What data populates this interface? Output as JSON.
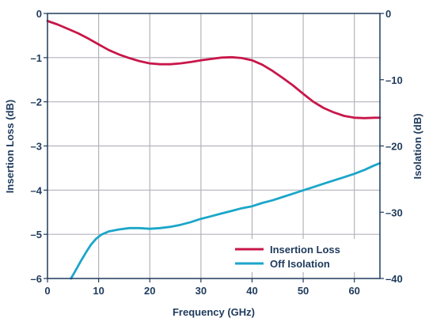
{
  "chart_data": {
    "type": "line",
    "xlabel": "Frequency (GHz)",
    "ylabel_left": "Insertion Loss (dB)",
    "ylabel_right": "Isolation (dB)",
    "xlim": [
      0,
      65
    ],
    "ylim_left": [
      -6,
      0
    ],
    "ylim_right": [
      -40,
      0
    ],
    "x_ticks": [
      0,
      10,
      20,
      30,
      40,
      50,
      60
    ],
    "y_ticks_left": [
      0,
      -1,
      -2,
      -3,
      -4,
      -5,
      -6
    ],
    "y_ticks_left_labels": [
      "0",
      "–1",
      "–2",
      "–3",
      "–4",
      "–5",
      "–6"
    ],
    "y_ticks_right": [
      0,
      -10,
      -20,
      -30,
      -40
    ],
    "y_ticks_right_labels": [
      "0",
      "–10",
      "–20",
      "–30",
      "–40"
    ],
    "grid": true,
    "legend_position": "bottom-right",
    "series": [
      {
        "name": "Insertion Loss",
        "axis": "left",
        "color": "#c8174a",
        "x": [
          0,
          2,
          4,
          6,
          8,
          10,
          12,
          14,
          16,
          18,
          20,
          22,
          24,
          26,
          28,
          30,
          32,
          34,
          36,
          38,
          40,
          42,
          44,
          46,
          48,
          50,
          52,
          54,
          56,
          58,
          60,
          62,
          64,
          65
        ],
        "y": [
          -0.17,
          -0.25,
          -0.35,
          -0.45,
          -0.57,
          -0.7,
          -0.83,
          -0.93,
          -1.01,
          -1.08,
          -1.13,
          -1.15,
          -1.15,
          -1.13,
          -1.1,
          -1.06,
          -1.03,
          -1.0,
          -0.99,
          -1.01,
          -1.06,
          -1.16,
          -1.3,
          -1.46,
          -1.63,
          -1.82,
          -2.0,
          -2.14,
          -2.24,
          -2.32,
          -2.36,
          -2.37,
          -2.36,
          -2.36
        ]
      },
      {
        "name": "Off Isolation",
        "axis": "right",
        "color": "#1ba6c9",
        "x": [
          4.6,
          5.5,
          6.5,
          7.5,
          8.5,
          9.5,
          10.5,
          12,
          14,
          16,
          18,
          20,
          22,
          24,
          26,
          28,
          30,
          32,
          34,
          36,
          38,
          40,
          42,
          44,
          46,
          48,
          50,
          52,
          54,
          56,
          58,
          60,
          62,
          64,
          65
        ],
        "y": [
          -40,
          -38.8,
          -37.4,
          -36.1,
          -34.9,
          -34.0,
          -33.4,
          -32.9,
          -32.6,
          -32.4,
          -32.4,
          -32.5,
          -32.4,
          -32.2,
          -31.9,
          -31.5,
          -31.0,
          -30.6,
          -30.2,
          -29.8,
          -29.4,
          -29.1,
          -28.6,
          -28.2,
          -27.7,
          -27.2,
          -26.7,
          -26.2,
          -25.7,
          -25.2,
          -24.7,
          -24.2,
          -23.6,
          -22.9,
          -22.6
        ]
      }
    ]
  }
}
